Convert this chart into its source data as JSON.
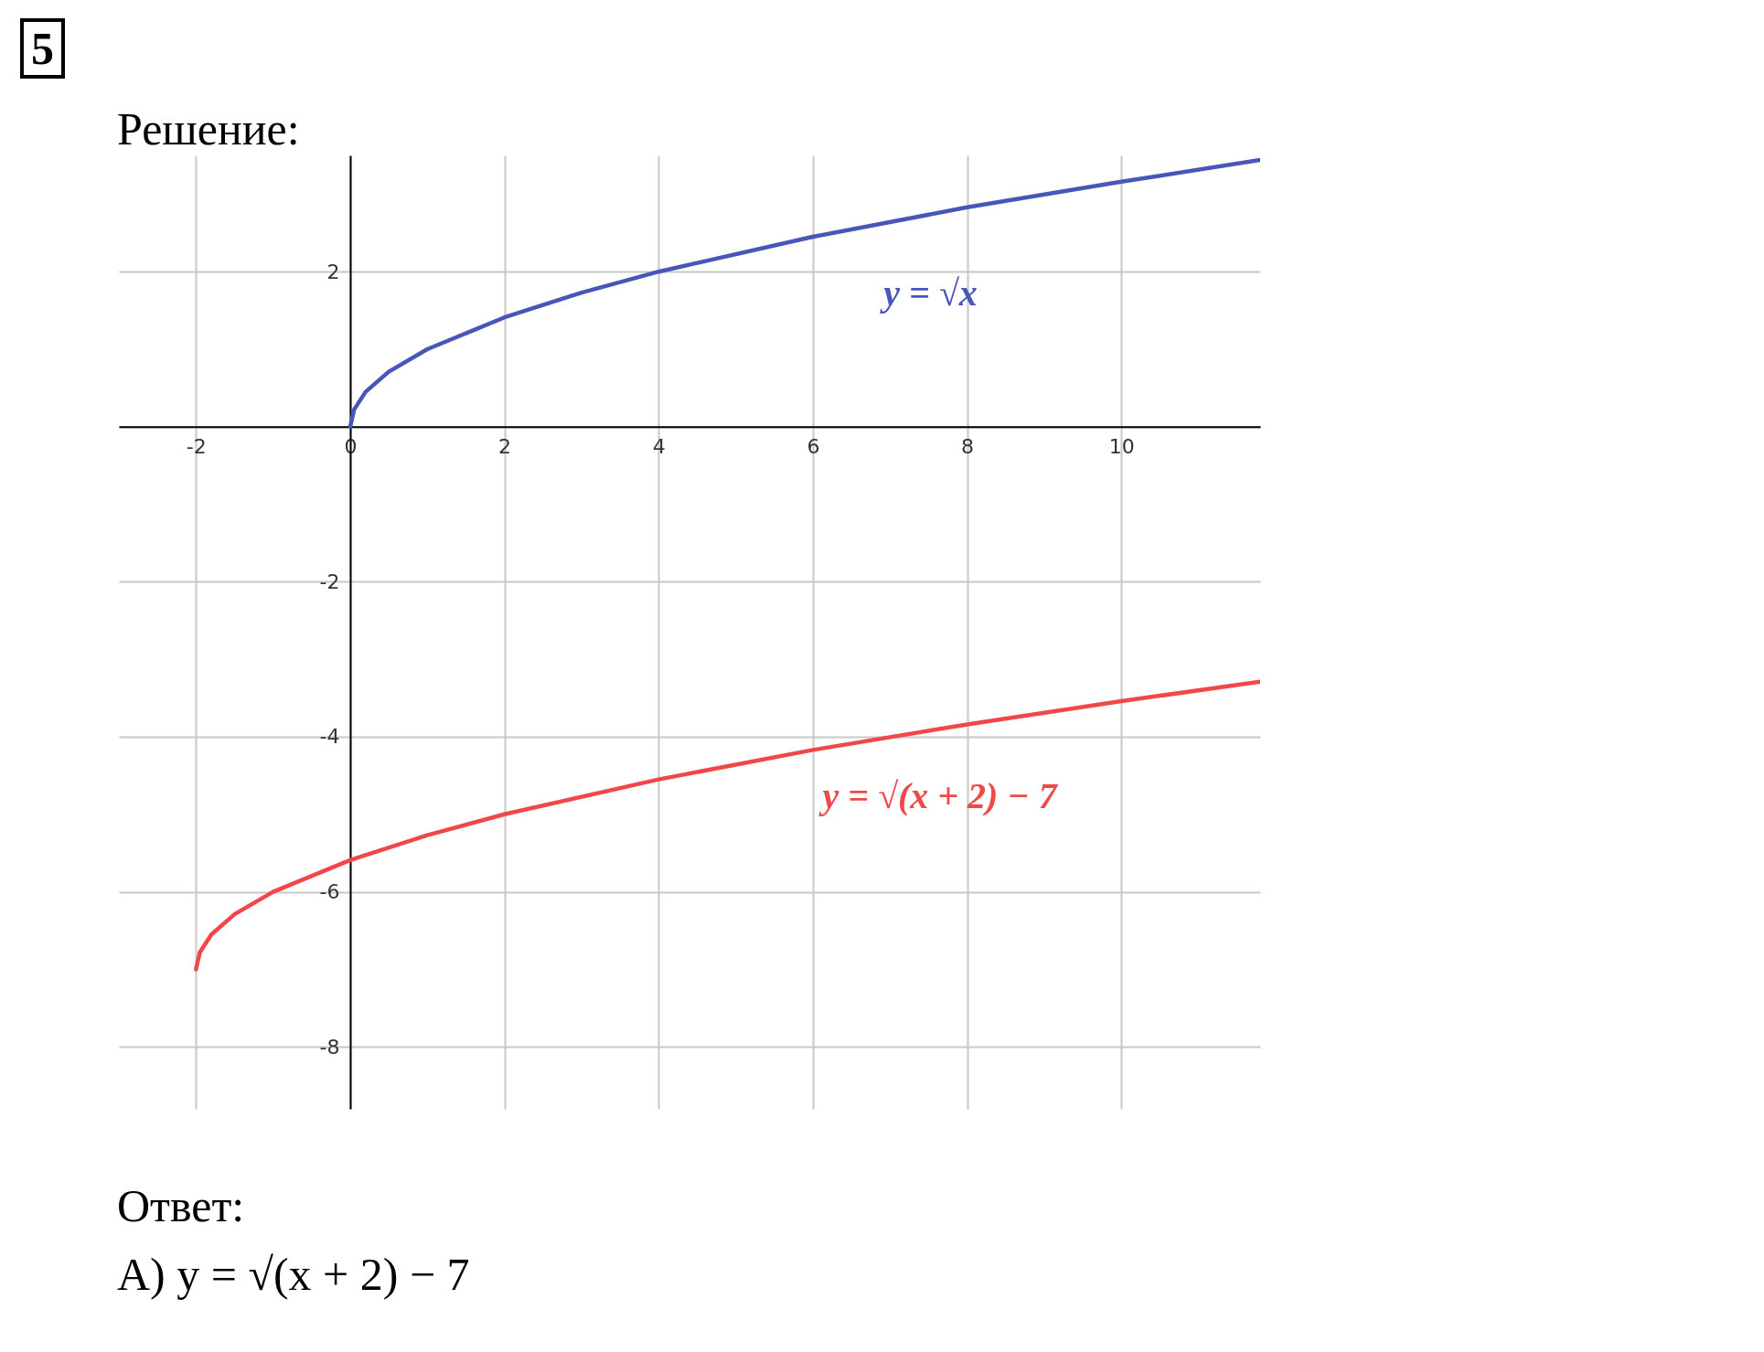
{
  "chart_data": {
    "type": "line",
    "title": "5",
    "annotations": [
      "Решение:",
      "Ответ:",
      "А) y = √(x + 2) − 7"
    ],
    "series": [
      {
        "name": "y = √x",
        "color": "#4756b8",
        "x": [
          0,
          0.05,
          0.2,
          0.5,
          1,
          2,
          3,
          4,
          6,
          8,
          10,
          11.8
        ],
        "values": [
          0,
          0.22,
          0.45,
          0.71,
          1,
          1.41,
          1.73,
          2,
          2.45,
          2.83,
          3.16,
          3.44
        ]
      },
      {
        "name": "y = √(x + 2) − 7",
        "color": "#f04848",
        "x": [
          -2,
          -1.95,
          -1.8,
          -1.5,
          -1,
          0,
          1,
          2,
          4,
          6,
          8,
          10,
          11.8
        ],
        "values": [
          -7,
          -6.78,
          -6.55,
          -6.29,
          -6,
          -5.59,
          -5.27,
          -5,
          -4.55,
          -4.17,
          -3.84,
          -3.54,
          -3.29
        ]
      }
    ],
    "xlim": [
      -3,
      11.8
    ],
    "ylim": [
      -8.8,
      3.5
    ],
    "xticks": [
      -2,
      0,
      2,
      4,
      6,
      8,
      10
    ],
    "yticks": [
      -8,
      -6,
      -4,
      -2,
      {
        "value": 0,
        "label": null
      },
      2
    ],
    "grid": true,
    "legend": false,
    "marker": "none",
    "line_style": "solid"
  }
}
